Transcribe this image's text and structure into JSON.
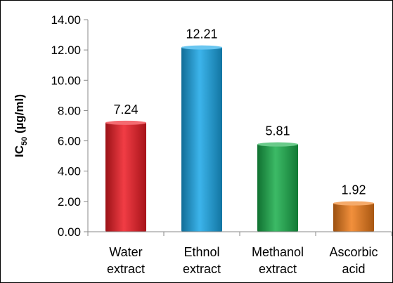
{
  "chart_data": {
    "type": "bar",
    "categories": [
      [
        "Water",
        "extract"
      ],
      [
        "Ethnol",
        "extract"
      ],
      [
        "Methanol",
        "extract"
      ],
      [
        "Ascorbic",
        "acid"
      ]
    ],
    "values": [
      7.24,
      12.21,
      5.81,
      1.92
    ],
    "data_labels": [
      "7.24",
      "12.21",
      "5.81",
      "1.92"
    ],
    "colors": [
      "#ee1b24",
      "#1aa7e8",
      "#19ae4b",
      "#f07c1a"
    ],
    "ylabel": {
      "main": "IC",
      "sub": "50",
      "rest": " (µg/ml)"
    },
    "ylim": [
      0,
      14
    ],
    "yticks": [
      "0.00",
      "2.00",
      "4.00",
      "6.00",
      "8.00",
      "10.00",
      "12.00",
      "14.00"
    ],
    "grid": false,
    "legend": "none"
  }
}
